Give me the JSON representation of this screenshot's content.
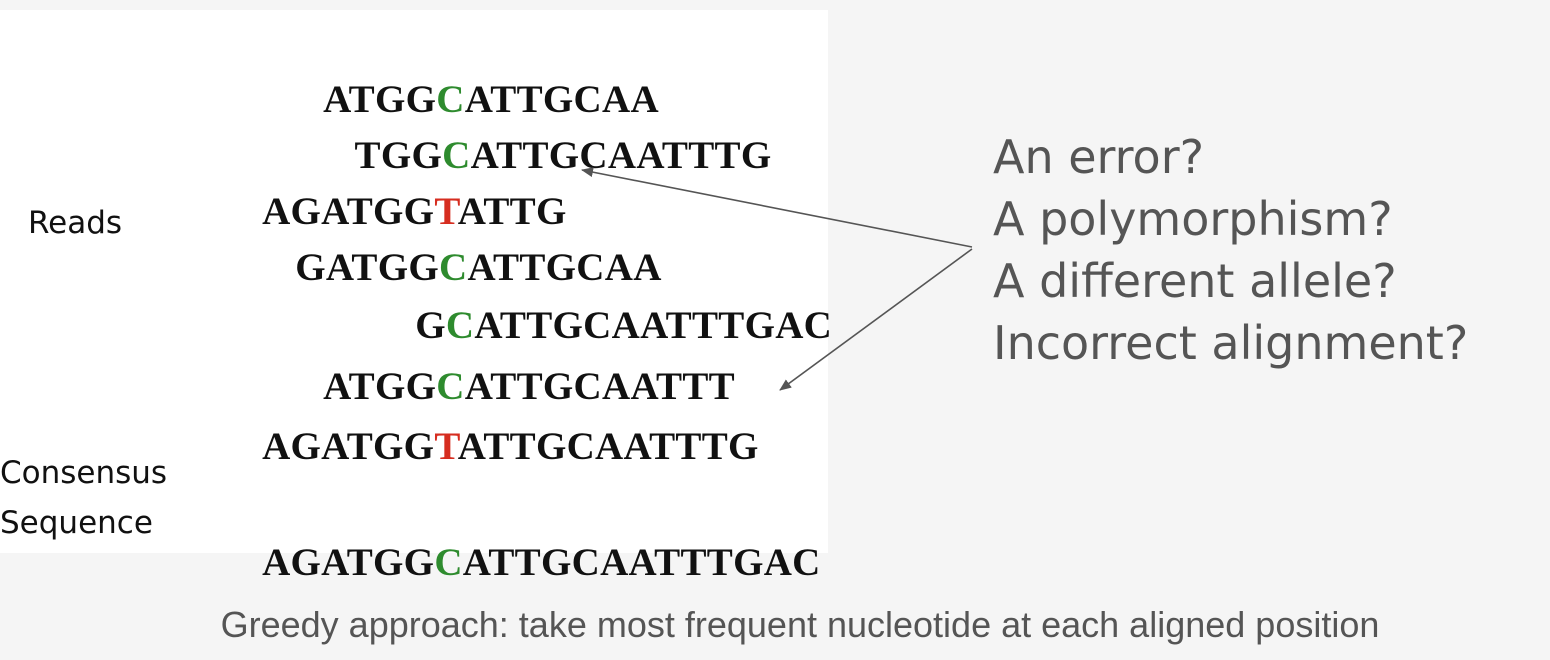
{
  "labels": {
    "reads": "Reads",
    "consensus_line1": "Consensus",
    "consensus_line2": "Sequence"
  },
  "reads": [
    {
      "pre": "ATGG",
      "hl": "C",
      "post": "ATTGCAA",
      "hl_color": "green"
    },
    {
      "pre": "TGG",
      "hl": "C",
      "post": "ATTGCAATTTG",
      "hl_color": "green"
    },
    {
      "pre": "AGATGG",
      "hl": "T",
      "post": "ATTG",
      "hl_color": "red"
    },
    {
      "pre": "GATGG",
      "hl": "C",
      "post": "ATTGCAA",
      "hl_color": "green"
    },
    {
      "pre": "G",
      "hl": "C",
      "post": "ATTGCAATTTGAC",
      "hl_color": "green"
    },
    {
      "pre": "ATGG",
      "hl": "C",
      "post": "ATTGCAATTT",
      "hl_color": "green"
    },
    {
      "pre": "AGATGG",
      "hl": "T",
      "post": "ATTGCAATTTG",
      "hl_color": "red"
    }
  ],
  "consensus": {
    "pre": "AGATGG",
    "hl": "C",
    "post": "ATTGCAATTTGAC",
    "hl_color": "green"
  },
  "questions": [
    "An error?",
    "A polymorphism?",
    "A different allele?",
    "Incorrect alignment?"
  ],
  "caption": "Greedy approach: take most frequent nucleotide at each aligned position",
  "colors": {
    "match_green": "#2e8b2e",
    "mismatch_red": "#d62d20",
    "question_text": "#555555",
    "arrow": "#555555"
  }
}
